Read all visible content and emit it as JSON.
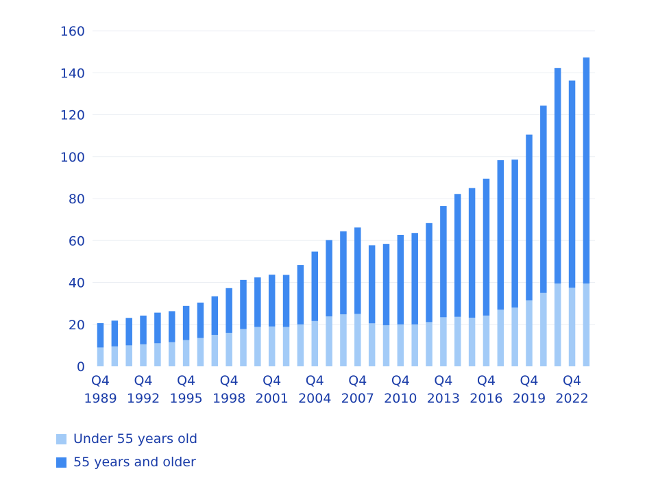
{
  "chart_data": {
    "type": "bar",
    "stacked": true,
    "title": "",
    "xlabel": "",
    "ylabel": "",
    "ylim": [
      0,
      160
    ],
    "yticks": [
      0,
      20,
      40,
      60,
      80,
      100,
      120,
      140,
      160
    ],
    "grid": true,
    "legend_position": "bottom-left",
    "categories": [
      "Q4 1989",
      "Q4 1990",
      "Q4 1991",
      "Q4 1992",
      "Q4 1993",
      "Q4 1994",
      "Q4 1995",
      "Q4 1996",
      "Q4 1997",
      "Q4 1998",
      "Q4 1999",
      "Q4 2000",
      "Q4 2001",
      "Q4 2002",
      "Q4 2003",
      "Q4 2004",
      "Q4 2005",
      "Q4 2006",
      "Q4 2007",
      "Q4 2008",
      "Q4 2009",
      "Q4 2010",
      "Q4 2011",
      "Q4 2012",
      "Q4 2013",
      "Q4 2014",
      "Q4 2015",
      "Q4 2016",
      "Q4 2017",
      "Q4 2018",
      "Q4 2019",
      "Q4 2020",
      "Q4 2021",
      "Q4 2022",
      "Q4 2023"
    ],
    "tick_labels": [
      {
        "index": 0,
        "line1": "Q4",
        "line2": "1989"
      },
      {
        "index": 3,
        "line1": "Q4",
        "line2": "1992"
      },
      {
        "index": 6,
        "line1": "Q4",
        "line2": "1995"
      },
      {
        "index": 9,
        "line1": "Q4",
        "line2": "1998"
      },
      {
        "index": 12,
        "line1": "Q4",
        "line2": "2001"
      },
      {
        "index": 15,
        "line1": "Q4",
        "line2": "2004"
      },
      {
        "index": 18,
        "line1": "Q4",
        "line2": "2007"
      },
      {
        "index": 21,
        "line1": "Q4",
        "line2": "2010"
      },
      {
        "index": 24,
        "line1": "Q4",
        "line2": "2013"
      },
      {
        "index": 27,
        "line1": "Q4",
        "line2": "2016"
      },
      {
        "index": 30,
        "line1": "Q4",
        "line2": "2019"
      },
      {
        "index": 33,
        "line1": "Q4",
        "line2": "2022"
      }
    ],
    "series": [
      {
        "name": "Under 55 years old",
        "color": "#a3cbf7",
        "values": [
          9,
          9.5,
          10,
          10.5,
          11,
          11.5,
          12.5,
          13.5,
          15,
          16,
          17.8,
          18.8,
          19,
          18.8,
          20,
          21.6,
          23.8,
          24.8,
          25,
          20.5,
          19.6,
          20,
          20,
          21.1,
          23.4,
          23.6,
          23.2,
          24.2,
          27,
          28,
          31.5,
          35,
          39.5,
          37.5,
          39.5
        ]
      },
      {
        "name": "55 years and older",
        "color": "#3e89f0",
        "values": [
          11.6,
          12.3,
          13.1,
          13.7,
          14.6,
          14.8,
          16.3,
          16.9,
          18.4,
          21.3,
          23.4,
          23.6,
          24.7,
          24.8,
          28.3,
          33.1,
          36.4,
          39.6,
          41.2,
          37.2,
          38.8,
          42.7,
          43.6,
          47.2,
          53,
          58.6,
          61.8,
          65.3,
          71.3,
          70.6,
          79,
          89.3,
          102.8,
          98.8,
          107.8
        ]
      }
    ]
  }
}
